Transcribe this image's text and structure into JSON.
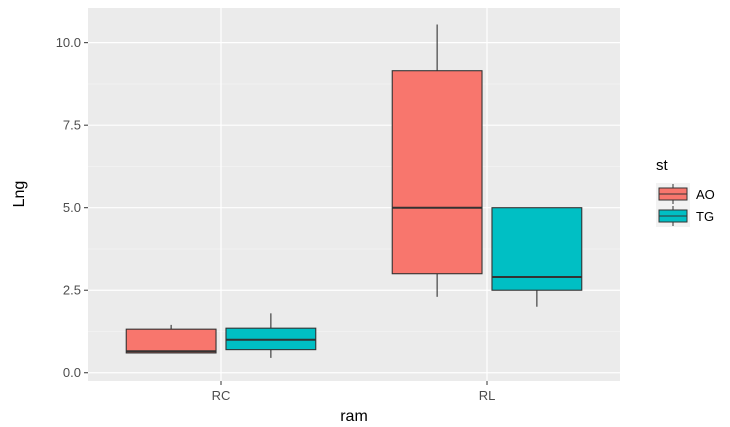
{
  "chart_data": {
    "type": "boxplot",
    "xlabel": "ram",
    "ylabel": "Lng",
    "categories": [
      "RC",
      "RL"
    ],
    "ylim": [
      -0.25,
      11.05
    ],
    "y_ticks": [
      0.0,
      2.5,
      5.0,
      7.5,
      10.0
    ],
    "y_tick_labels": [
      "0.0",
      "2.5",
      "5.0",
      "7.5",
      "10.0"
    ],
    "grid": true,
    "legend": {
      "title": "st",
      "position": "right"
    },
    "series": [
      {
        "name": "AO",
        "color": "#F8766D",
        "boxes": [
          {
            "category": "RC",
            "min": 0.6,
            "q1": 0.6,
            "median": 0.65,
            "q3": 1.32,
            "max": 1.45
          },
          {
            "category": "RL",
            "min": 2.3,
            "q1": 3.0,
            "median": 5.0,
            "q3": 9.15,
            "max": 10.55
          }
        ]
      },
      {
        "name": "TG",
        "color": "#00BFC4",
        "boxes": [
          {
            "category": "RC",
            "min": 0.45,
            "q1": 0.7,
            "median": 1.0,
            "q3": 1.35,
            "max": 1.8
          },
          {
            "category": "RL",
            "min": 2.0,
            "q1": 2.5,
            "median": 2.9,
            "q3": 5.0,
            "max": 5.0
          }
        ]
      }
    ]
  }
}
